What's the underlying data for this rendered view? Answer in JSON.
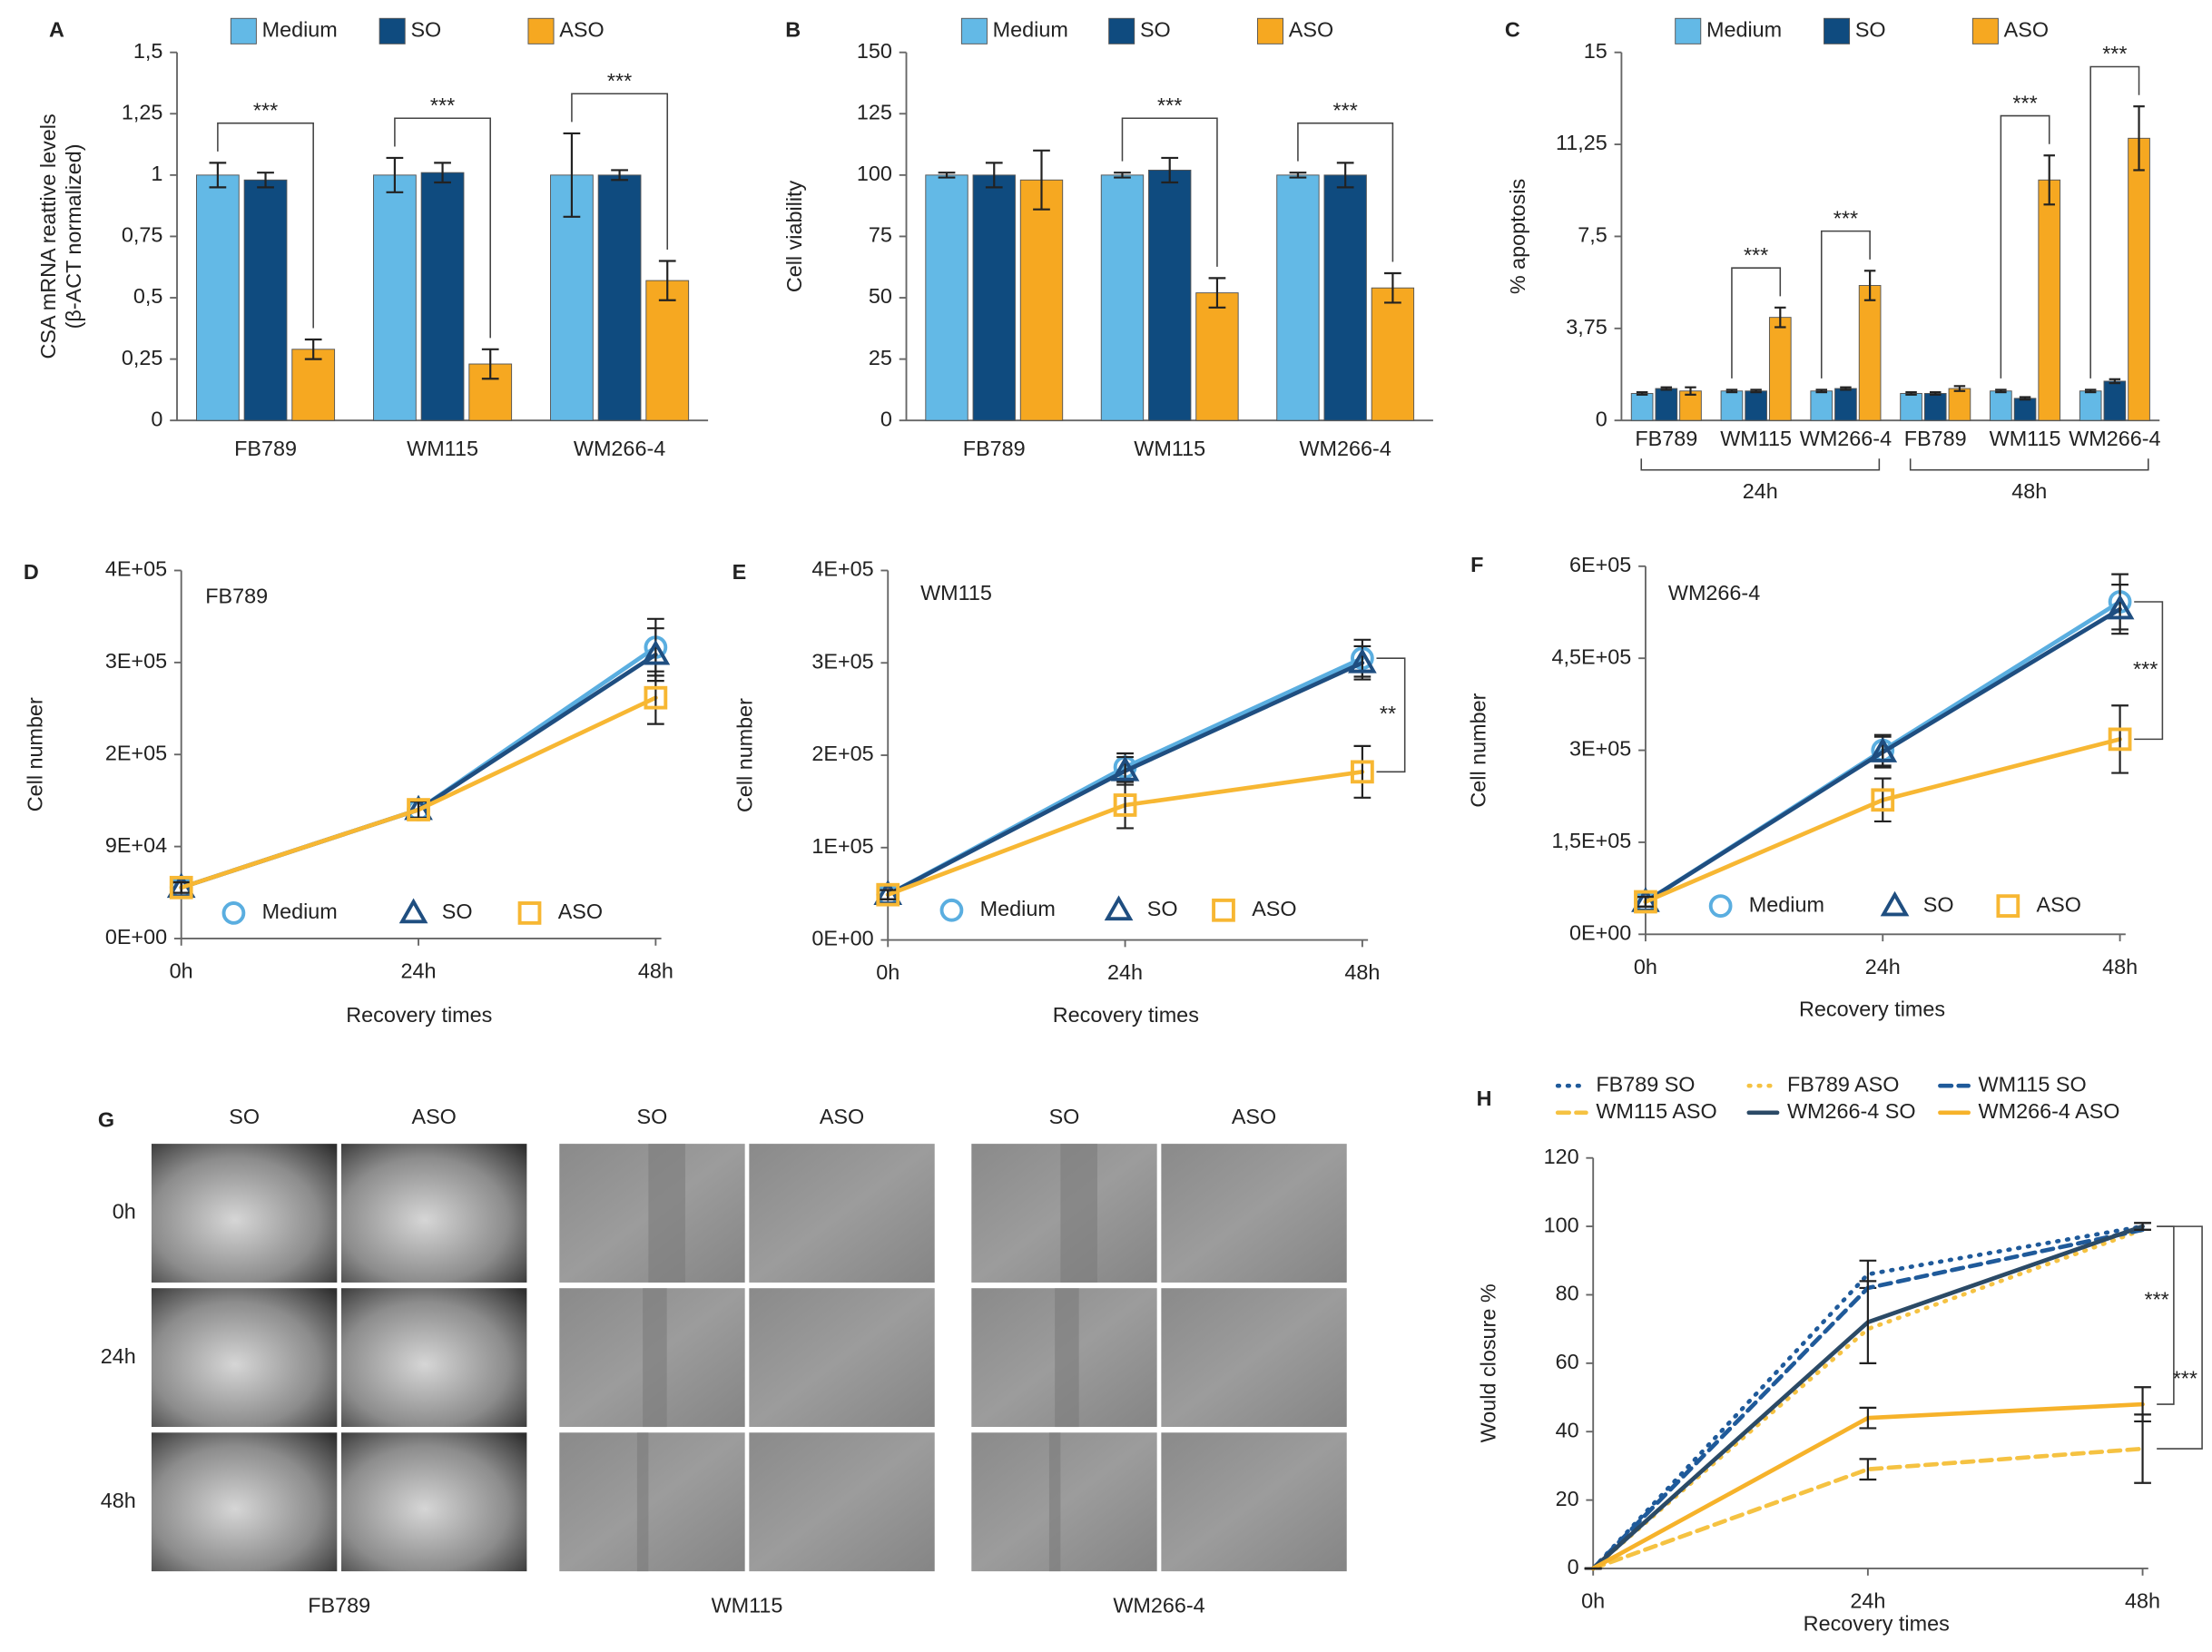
{
  "chart_data": [
    {
      "type": "bar",
      "panel": "A",
      "ylabel": [
        "CSA mRNA reattive levels",
        "(β-ACT normalized)"
      ],
      "categories": [
        "FB789",
        "WM115",
        "WM266-4"
      ],
      "series": [
        {
          "name": "Medium",
          "color": "#63b9e6",
          "values": [
            1,
            1,
            1
          ],
          "errors": [
            0.05,
            0.07,
            0.17
          ]
        },
        {
          "name": "SO",
          "color": "#0f4b7f",
          "values": [
            0.98,
            1.01,
            1.0
          ],
          "errors": [
            0.03,
            0.04,
            0.02
          ]
        },
        {
          "name": "ASO",
          "color": "#f6a821",
          "values": [
            0.29,
            0.23,
            0.57
          ],
          "errors": [
            0.04,
            0.06,
            0.08
          ]
        }
      ],
      "ylim": [
        0,
        1.5
      ],
      "yticks": [
        0,
        {
          "value": 0.25,
          "label": "0,25"
        },
        {
          "value": 0.5,
          "label": "0,5"
        },
        {
          "value": 0.75,
          "label": "0,75"
        },
        1,
        {
          "value": 1.25,
          "label": "1,25"
        },
        {
          "value": 1.5,
          "label": "1,5"
        }
      ],
      "significance": [
        "***",
        "***",
        "***"
      ]
    },
    {
      "type": "bar",
      "panel": "B",
      "ylabel": "Cell viability",
      "categories": [
        "FB789",
        "WM115",
        "WM266-4"
      ],
      "series": [
        {
          "name": "Medium",
          "color": "#63b9e6",
          "values": [
            100,
            100,
            100
          ],
          "errors": [
            1,
            1,
            1
          ]
        },
        {
          "name": "SO",
          "color": "#0f4b7f",
          "values": [
            100,
            102,
            100
          ],
          "errors": [
            5,
            5,
            5
          ]
        },
        {
          "name": "ASO",
          "color": "#f6a821",
          "values": [
            98,
            52,
            54
          ],
          "errors": [
            12,
            6,
            6
          ]
        }
      ],
      "ylim": [
        0,
        150
      ],
      "yticks": [
        0,
        25,
        50,
        75,
        100,
        125,
        150
      ],
      "significance": [
        null,
        "***",
        "***"
      ]
    },
    {
      "type": "bar",
      "panel": "C",
      "ylabel": "% apoptosis",
      "categories": [
        "FB789",
        "WM115",
        "WM266-4",
        "FB789",
        "WM115",
        "WM266-4"
      ],
      "groups": [
        "24h",
        "48h"
      ],
      "series": [
        {
          "name": "Medium",
          "color": "#63b9e6",
          "values": [
            1.1,
            1.2,
            1.2,
            1.1,
            1.2,
            1.2
          ],
          "errors": [
            0.05,
            0.05,
            0.05,
            0.05,
            0.05,
            0.05
          ]
        },
        {
          "name": "SO",
          "color": "#0f4b7f",
          "values": [
            1.3,
            1.2,
            1.3,
            1.1,
            0.9,
            1.6
          ],
          "errors": [
            0.05,
            0.05,
            0.05,
            0.05,
            0.05,
            0.08
          ]
        },
        {
          "name": "ASO",
          "color": "#f6a821",
          "values": [
            1.2,
            4.2,
            5.5,
            1.3,
            9.8,
            11.5
          ],
          "errors": [
            0.15,
            0.4,
            0.6,
            0.1,
            1.0,
            1.3
          ]
        }
      ],
      "ylim": [
        0,
        15
      ],
      "yticks": [
        0,
        {
          "value": 3.75,
          "label": "3,75"
        },
        {
          "value": 7.5,
          "label": "7,5"
        },
        {
          "value": 11.25,
          "label": "11,25"
        },
        15
      ],
      "significance": [
        null,
        "***",
        "***",
        null,
        "***",
        "***"
      ]
    },
    {
      "type": "line",
      "panel": "D",
      "title": "FB789",
      "xlabel": "Recovery times",
      "ylabel": "Cell number",
      "categories": [
        "0h",
        "24h",
        "48h"
      ],
      "series": [
        {
          "name": "Medium",
          "color": "#5aaee0",
          "marker": "circle",
          "values": [
            48500,
            122500,
            277000
          ],
          "errors": [
            5000,
            8000,
            27000
          ]
        },
        {
          "name": "SO",
          "color": "#1f4e80",
          "marker": "triangle",
          "values": [
            48500,
            122500,
            270000
          ],
          "errors": [
            5000,
            8000,
            25000
          ]
        },
        {
          "name": "ASO",
          "color": "#f7b733",
          "marker": "square",
          "values": [
            48500,
            122500,
            229000
          ],
          "errors": [
            5000,
            8000,
            25000
          ]
        }
      ],
      "ylim": [
        0,
        350000
      ],
      "yticks": [
        {
          "value": 0,
          "label": "0E+00"
        },
        {
          "value": 87500,
          "label": "9E+04"
        },
        {
          "value": 175000,
          "label": "2E+05"
        },
        {
          "value": 262500,
          "label": "3E+05"
        },
        {
          "value": 350000,
          "label": "4E+05"
        }
      ]
    },
    {
      "type": "line",
      "panel": "E",
      "title": "WM115",
      "xlabel": "Recovery times",
      "ylabel": "Cell number",
      "categories": [
        "0h",
        "24h",
        "48h"
      ],
      "series": [
        {
          "name": "Medium",
          "color": "#5aaee0",
          "marker": "circle",
          "values": [
            49000,
            187000,
            305000
          ],
          "errors": [
            5000,
            15000,
            20000
          ]
        },
        {
          "name": "SO",
          "color": "#1f4e80",
          "marker": "triangle",
          "values": [
            49000,
            183000,
            300000
          ],
          "errors": [
            5000,
            15000,
            18000
          ]
        },
        {
          "name": "ASO",
          "color": "#f7b733",
          "marker": "square",
          "values": [
            49000,
            146000,
            182000
          ],
          "errors": [
            5000,
            25000,
            28000
          ]
        }
      ],
      "ylim": [
        0,
        400000
      ],
      "yticks": [
        {
          "value": 0,
          "label": "0E+00"
        },
        {
          "value": 100000,
          "label": "1E+05"
        },
        {
          "value": 200000,
          "label": "2E+05"
        },
        {
          "value": 300000,
          "label": "3E+05"
        },
        {
          "value": 400000,
          "label": "4E+05"
        }
      ],
      "significance": [
        "**"
      ]
    },
    {
      "type": "line",
      "panel": "F",
      "title": "WM266-4",
      "xlabel": "Recovery times",
      "ylabel": "Cell number",
      "categories": [
        "0h",
        "24h",
        "48h"
      ],
      "series": [
        {
          "name": "Medium",
          "color": "#5aaee0",
          "marker": "circle",
          "values": [
            53000,
            300000,
            542000
          ],
          "errors": [
            8000,
            25000,
            45000
          ]
        },
        {
          "name": "SO",
          "color": "#1f4e80",
          "marker": "triangle",
          "values": [
            53000,
            297000,
            530000
          ],
          "errors": [
            8000,
            25000,
            40000
          ]
        },
        {
          "name": "ASO",
          "color": "#f7b733",
          "marker": "square",
          "values": [
            53000,
            219000,
            318000
          ],
          "errors": [
            8000,
            35000,
            55000
          ]
        }
      ],
      "ylim": [
        0,
        600000
      ],
      "yticks": [
        {
          "value": 0,
          "label": "0E+00"
        },
        {
          "value": 150000,
          "label": "1,5E+05"
        },
        {
          "value": 300000,
          "label": "3E+05"
        },
        {
          "value": 450000,
          "label": "4,5E+05"
        },
        {
          "value": 600000,
          "label": "6E+05"
        }
      ],
      "significance": [
        "***"
      ]
    },
    {
      "type": "line",
      "panel": "H",
      "xlabel": "Recovery times",
      "ylabel": "Would closure %",
      "categories": [
        "0h",
        "24h",
        "48h"
      ],
      "series": [
        {
          "name": "FB789 SO",
          "color": "#1f5a9a",
          "dash": "dotted",
          "values": [
            0,
            86,
            100
          ],
          "errors": [
            0,
            4,
            1
          ]
        },
        {
          "name": "FB789 ASO",
          "color": "#f5c242",
          "dash": "dotted",
          "values": [
            0,
            70,
            99
          ]
        },
        {
          "name": "WM115 SO",
          "color": "#1f5a9a",
          "dash": "dashed",
          "values": [
            0,
            82,
            99
          ]
        },
        {
          "name": "WM115 ASO",
          "color": "#f5c242",
          "dash": "dashed",
          "values": [
            0,
            29,
            35
          ],
          "errors": [
            0,
            3,
            10
          ]
        },
        {
          "name": "WM266-4 SO",
          "color": "#2b4a66",
          "dash": "solid",
          "values": [
            0,
            72,
            100
          ],
          "errors": [
            0,
            12,
            1
          ]
        },
        {
          "name": "WM266-4 ASO",
          "color": "#f6b22a",
          "dash": "solid",
          "values": [
            0,
            44,
            48
          ],
          "errors": [
            0,
            3,
            5
          ]
        }
      ],
      "ylim": [
        0,
        120
      ],
      "yticks": [
        0,
        20,
        40,
        60,
        80,
        100,
        120
      ],
      "significance": [
        "***",
        "***"
      ]
    }
  ],
  "micrographs": {
    "panel": "G",
    "columns": [
      "SO",
      "ASO"
    ],
    "rows": [
      "0h",
      "24h",
      "48h"
    ],
    "cell_lines": [
      "FB789",
      "WM115",
      "WM266-4"
    ]
  }
}
